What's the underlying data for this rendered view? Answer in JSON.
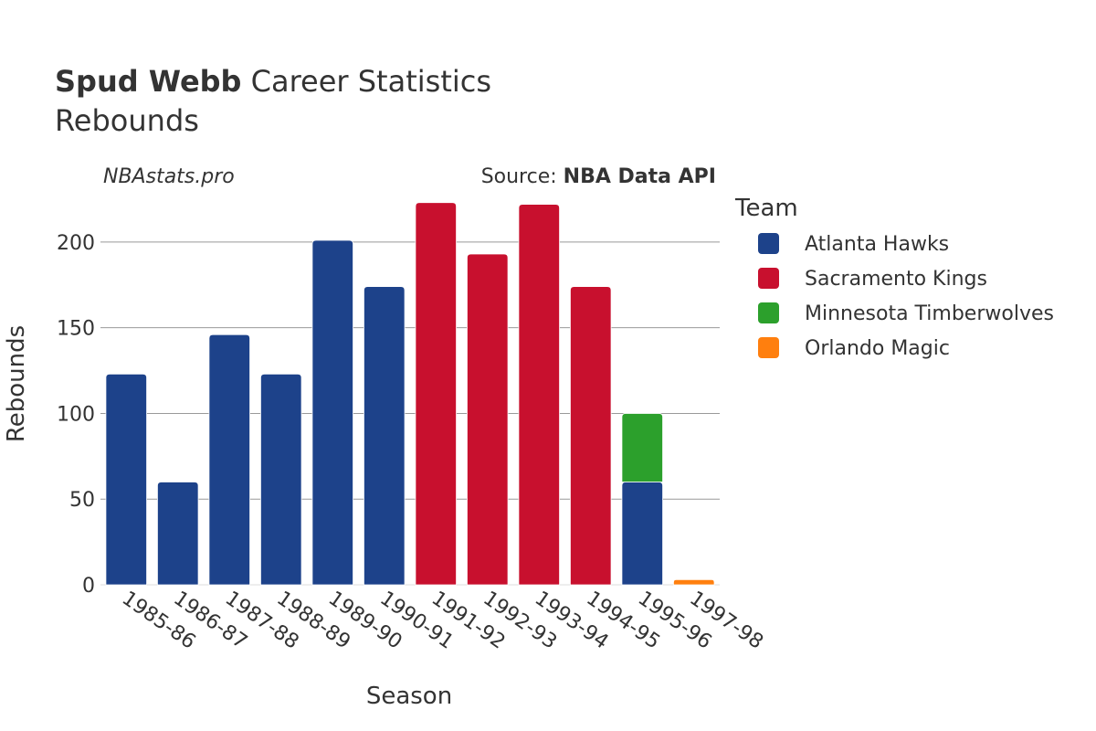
{
  "header": {
    "title_name": "Spud Webb",
    "title_rest": " Career Statistics",
    "subtitle": "Rebounds",
    "watermark": "NBAstats.pro",
    "source_prefix": "Source: ",
    "source_name": "NBA Data API"
  },
  "legend": {
    "title": "Team"
  },
  "chart_data": {
    "type": "bar",
    "stacked": true,
    "title": "Spud Webb Career Statistics",
    "subtitle": "Rebounds",
    "xlabel": "Season",
    "ylabel": "Rebounds",
    "ylim": [
      0,
      225
    ],
    "yticks": [
      0,
      50,
      100,
      150,
      200
    ],
    "grid": true,
    "legend_position": "right",
    "categories": [
      "1985-86",
      "1986-87",
      "1987-88",
      "1988-89",
      "1989-90",
      "1990-91",
      "1991-92",
      "1992-93",
      "1993-94",
      "1994-95",
      "1995-96",
      "1997-98"
    ],
    "series": [
      {
        "name": "Atlanta Hawks",
        "color": "#1d428a",
        "values": [
          123,
          60,
          146,
          123,
          201,
          174,
          0,
          0,
          0,
          0,
          60,
          0
        ]
      },
      {
        "name": "Sacramento Kings",
        "color": "#c8102e",
        "values": [
          0,
          0,
          0,
          0,
          0,
          0,
          223,
          193,
          222,
          174,
          0,
          0
        ]
      },
      {
        "name": "Minnesota Timberwolves",
        "color": "#2ca02c",
        "values": [
          0,
          0,
          0,
          0,
          0,
          0,
          0,
          0,
          0,
          0,
          40,
          0
        ]
      },
      {
        "name": "Orlando Magic",
        "color": "#ff7f0e",
        "values": [
          0,
          0,
          0,
          0,
          0,
          0,
          0,
          0,
          0,
          0,
          0,
          3
        ]
      }
    ]
  }
}
